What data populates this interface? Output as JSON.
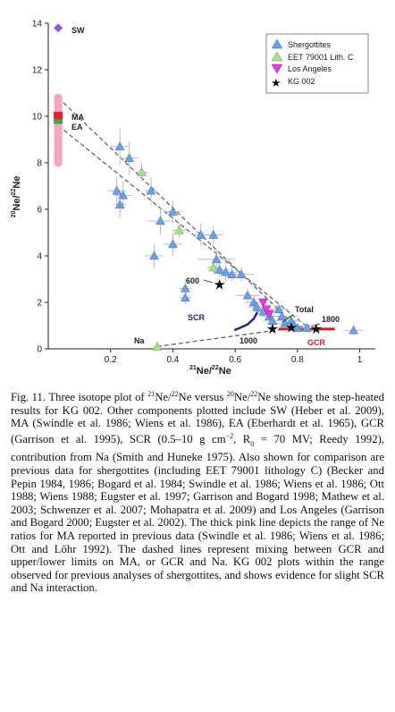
{
  "chart_data": {
    "type": "scatter",
    "xlabel_main": "Ne/",
    "xlabel_sup1": "21",
    "xlabel_sup2": "22",
    "xlabel_end": "Ne",
    "ylabel_sup1": "20",
    "ylabel_main": "Ne/",
    "ylabel_sup2": "22",
    "ylabel_end": "Ne",
    "xlim": [
      0,
      1.05
    ],
    "ylim": [
      0,
      14
    ],
    "x_ticks": [
      "0.2",
      "0.4",
      "0.6",
      "0.8",
      "1"
    ],
    "x_tick_values": [
      0.2,
      0.4,
      0.6,
      0.8,
      1.0
    ],
    "y_ticks": [
      "0",
      "2",
      "4",
      "6",
      "8",
      "10",
      "12",
      "14"
    ],
    "y_tick_values": [
      0,
      2,
      4,
      6,
      8,
      10,
      12,
      14
    ],
    "legend": {
      "placement": "top-right",
      "entries": [
        "Shergottites",
        "EET 79001 Lith. C",
        "Los Angeles",
        "KG 002"
      ]
    },
    "colors": {
      "shergottites": "#6b9fe8",
      "eet": "#a8e08a",
      "los_angeles": "#e63adf",
      "kg002": "#111111",
      "sw": "#9a55d8",
      "ma": "#e8232a",
      "ea": "#3aa84a",
      "ma_range": "#f4a7bd",
      "gcr": "#cc2222",
      "scr": "#1c2a8c",
      "na": "#8fd5c0"
    },
    "annotations": {
      "sw": "SW",
      "ma": "MA",
      "ea": "EA",
      "na": "Na",
      "scr": "SCR",
      "gcr": "GCR",
      "total": "Total",
      "t600": "600",
      "t1000": "1000",
      "t1800": "1800"
    },
    "sw_point": [
      0.032,
      13.8
    ],
    "ma_point": [
      0.032,
      10.0
    ],
    "ea_point": [
      0.032,
      9.75
    ],
    "ma_range": [
      8.0,
      10.8
    ],
    "na_point": [
      0.35,
      0.1
    ],
    "gcr_segment": [
      [
        0.74,
        0.85
      ],
      [
        0.92,
        0.85
      ]
    ],
    "scr_curve": [
      [
        0.675,
        1.75
      ],
      [
        0.67,
        1.55
      ],
      [
        0.66,
        1.3
      ],
      [
        0.64,
        1.05
      ],
      [
        0.615,
        0.9
      ],
      [
        0.6,
        0.82
      ]
    ],
    "mixing_lines": [
      [
        [
          0.032,
          10.8
        ],
        [
          0.8,
          0.9
        ]
      ],
      [
        [
          0.032,
          9.6
        ],
        [
          0.84,
          0.85
        ]
      ],
      [
        [
          0.35,
          0.1
        ],
        [
          0.84,
          1.0
        ]
      ]
    ],
    "shergottites": [
      {
        "x": 0.23,
        "y": 8.7,
        "ex": 0.03,
        "ey": 0.8
      },
      {
        "x": 0.26,
        "y": 8.2,
        "ex": 0.03,
        "ey": 0.7
      },
      {
        "x": 0.22,
        "y": 6.8,
        "ex": 0.03,
        "ey": 0.6
      },
      {
        "x": 0.23,
        "y": 6.2,
        "ex": 0.02,
        "ey": 0.6
      },
      {
        "x": 0.24,
        "y": 6.6,
        "ex": 0.03,
        "ey": 0.6
      },
      {
        "x": 0.33,
        "y": 6.8,
        "ex": 0.02,
        "ey": 0.6
      },
      {
        "x": 0.36,
        "y": 5.5,
        "ex": 0.04,
        "ey": 0.6
      },
      {
        "x": 0.4,
        "y": 5.9,
        "ex": 0.03,
        "ey": 0.5
      },
      {
        "x": 0.4,
        "y": 4.5,
        "ex": 0.03,
        "ey": 0.5
      },
      {
        "x": 0.34,
        "y": 4.0,
        "ex": 0.03,
        "ey": 0.5
      },
      {
        "x": 0.49,
        "y": 4.9,
        "ex": 0.03,
        "ey": 0.5
      },
      {
        "x": 0.53,
        "y": 4.9,
        "ex": 0.03,
        "ey": 0.4
      },
      {
        "x": 0.54,
        "y": 3.85,
        "ex": 0.06,
        "ey": 0.4
      },
      {
        "x": 0.57,
        "y": 3.3,
        "ex": 0.04,
        "ey": 0.4
      },
      {
        "x": 0.59,
        "y": 3.2,
        "ex": 0.04,
        "ey": 0.3
      },
      {
        "x": 0.62,
        "y": 3.2,
        "ex": 0.04,
        "ey": 0.3
      },
      {
        "x": 0.55,
        "y": 3.4,
        "ex": 0.03,
        "ey": 0.3
      },
      {
        "x": 0.44,
        "y": 2.6,
        "ex": 0.02,
        "ey": 0.4
      },
      {
        "x": 0.44,
        "y": 2.2,
        "ex": 0.02,
        "ey": 0.3
      },
      {
        "x": 0.64,
        "y": 2.3,
        "ex": 0.04,
        "ey": 0.3
      },
      {
        "x": 0.66,
        "y": 2.0,
        "ex": 0.03,
        "ey": 0.3
      },
      {
        "x": 0.67,
        "y": 1.8,
        "ex": 0.03,
        "ey": 0.2
      },
      {
        "x": 0.69,
        "y": 1.6,
        "ex": 0.03,
        "ey": 0.2
      },
      {
        "x": 0.71,
        "y": 1.4,
        "ex": 0.03,
        "ey": 0.2
      },
      {
        "x": 0.72,
        "y": 1.2,
        "ex": 0.03,
        "ey": 0.2
      },
      {
        "x": 0.74,
        "y": 1.7,
        "ex": 0.03,
        "ey": 0.2
      },
      {
        "x": 0.75,
        "y": 1.4,
        "ex": 0.03,
        "ey": 0.2
      },
      {
        "x": 0.76,
        "y": 1.1,
        "ex": 0.03,
        "ey": 0.2
      },
      {
        "x": 0.78,
        "y": 1.2,
        "ex": 0.03,
        "ey": 0.2
      },
      {
        "x": 0.8,
        "y": 0.9,
        "ex": 0.03,
        "ey": 0.2
      },
      {
        "x": 0.83,
        "y": 0.9,
        "ex": 0.04,
        "ey": 0.2
      },
      {
        "x": 0.98,
        "y": 0.8,
        "ex": 0.03,
        "ey": 0.2
      },
      {
        "x": 0.79,
        "y": 1.0,
        "ex": 0.02,
        "ey": 0.2
      }
    ],
    "eet": [
      {
        "x": 0.3,
        "y": 7.6,
        "ex": 0.02,
        "ey": 0.4
      },
      {
        "x": 0.42,
        "y": 5.1,
        "ex": 0.02,
        "ey": 0.3
      },
      {
        "x": 0.53,
        "y": 3.5,
        "ex": 0.02,
        "ey": 0.3
      },
      {
        "x": 0.35,
        "y": 0.1,
        "ex": 0.01,
        "ey": 0.1
      }
    ],
    "los_angeles": [
      {
        "x": 0.69,
        "y": 2.0
      },
      {
        "x": 0.7,
        "y": 1.7
      },
      {
        "x": 0.71,
        "y": 1.5
      }
    ],
    "kg002": [
      {
        "x": 0.55,
        "y": 2.75
      },
      {
        "x": 0.72,
        "y": 0.85
      },
      {
        "x": 0.78,
        "y": 0.9
      },
      {
        "x": 0.86,
        "y": 0.85
      }
    ]
  },
  "caption": {
    "fig_label": "Fig. 11.",
    "p1": " Three isotope plot of ",
    "sup_a": "21",
    "p2": "Ne/",
    "sup_b": "22",
    "p3": "Ne versus ",
    "sup_c": "20",
    "p4": "Ne/",
    "sup_d": "22",
    "p5": "Ne showing the step-heated results for KG 002. Other components plotted include SW (Heber et al. 2009), MA (Swindle et al. 1986; Wiens et al. 1986), EA (Eberhardt et al. 1965), GCR (Garrison et al. 1995), SCR (0.5–10 g cm",
    "sup_e": "−2",
    "p6": ", R",
    "sub_f": "0",
    "p7": " = 70 MV; Reedy 1992), contribution from Na (Smith and Huneke 1975). Also shown for comparison are previous data for shergottites (including EET 79001 lithology C) (Becker and Pepin 1984, 1986; Bogard et al. 1984; Swindle et al. 1986; Wiens et al. 1986; Ott 1988; Wiens 1988; Eugster et al. 1997; Garrison and Bogard 1998; Mathew et al. 2003; Schwenzer et al. 2007; Mohapatra et al. 2009) and Los Angeles (Garrison and Bogard 2000; Eugster et al. 2002). The thick pink line depicts the range of Ne ratios for MA reported in previous data (Swindle et al. 1986; Wiens et al. 1986; Ott and Lőhr 1992). The dashed lines represent mixing between GCR and upper/lower limits on MA, or GCR and Na. KG 002 plots within the range observed for previous analyses of shergottites, and shows evidence for slight SCR and Na interaction."
  }
}
